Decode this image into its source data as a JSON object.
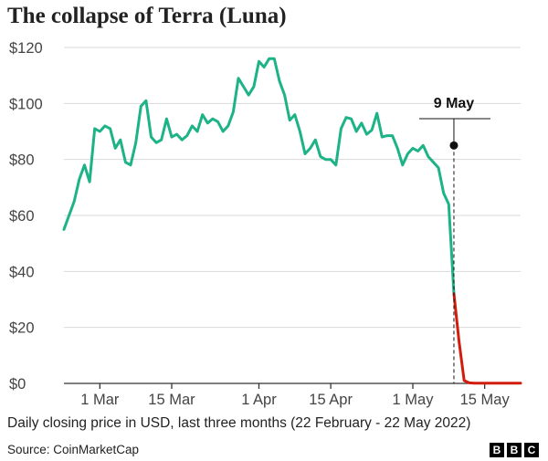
{
  "header": {
    "title": "The collapse of Terra (Luna)"
  },
  "footer": {
    "subtitle": "Daily closing price in USD, last three months (22 February - 22 May 2022)",
    "source": "Source: CoinMarketCap",
    "logo_letters": [
      "B",
      "B",
      "C"
    ]
  },
  "chart_data": {
    "type": "line",
    "title": "The collapse of Terra (Luna)",
    "subtitle": "Daily closing price in USD, last three months (22 February - 22 May 2022)",
    "xlabel": "",
    "ylabel": "",
    "ylim": [
      0,
      120
    ],
    "yticks": [
      0,
      20,
      40,
      60,
      80,
      100,
      120
    ],
    "ytick_labels": [
      "$0",
      "$20",
      "$40",
      "$60",
      "$80",
      "$100",
      "$120"
    ],
    "xticks": [
      "2022-03-01",
      "2022-03-15",
      "2022-04-01",
      "2022-04-15",
      "2022-05-01",
      "2022-05-15"
    ],
    "xtick_labels": [
      "1 Mar",
      "15 Mar",
      "1 Apr",
      "15 Apr",
      "1 May",
      "15 May"
    ],
    "x_range": [
      "2022-02-22",
      "2022-05-22"
    ],
    "grid": "horizontal",
    "annotation": {
      "date": "2022-05-09",
      "label": "9 May",
      "value": 85
    },
    "colors": {
      "before": "#1db387",
      "after": "#d21d0c",
      "grid": "#d9d9d9",
      "axis": "#333333"
    },
    "series": [
      {
        "name": "",
        "x": [
          "2022-02-22",
          "2022-02-23",
          "2022-02-24",
          "2022-02-25",
          "2022-02-26",
          "2022-02-27",
          "2022-02-28",
          "2022-03-01",
          "2022-03-02",
          "2022-03-03",
          "2022-03-04",
          "2022-03-05",
          "2022-03-06",
          "2022-03-07",
          "2022-03-08",
          "2022-03-09",
          "2022-03-10",
          "2022-03-11",
          "2022-03-12",
          "2022-03-13",
          "2022-03-14",
          "2022-03-15",
          "2022-03-16",
          "2022-03-17",
          "2022-03-18",
          "2022-03-19",
          "2022-03-20",
          "2022-03-21",
          "2022-03-22",
          "2022-03-23",
          "2022-03-24",
          "2022-03-25",
          "2022-03-26",
          "2022-03-27",
          "2022-03-28",
          "2022-03-29",
          "2022-03-30",
          "2022-03-31",
          "2022-04-01",
          "2022-04-02",
          "2022-04-03",
          "2022-04-04",
          "2022-04-05",
          "2022-04-06",
          "2022-04-07",
          "2022-04-08",
          "2022-04-09",
          "2022-04-10",
          "2022-04-11",
          "2022-04-12",
          "2022-04-13",
          "2022-04-14",
          "2022-04-15",
          "2022-04-16",
          "2022-04-17",
          "2022-04-18",
          "2022-04-19",
          "2022-04-20",
          "2022-04-21",
          "2022-04-22",
          "2022-04-23",
          "2022-04-24",
          "2022-04-25",
          "2022-04-26",
          "2022-04-27",
          "2022-04-28",
          "2022-04-29",
          "2022-04-30",
          "2022-05-01",
          "2022-05-02",
          "2022-05-03",
          "2022-05-04",
          "2022-05-05",
          "2022-05-06",
          "2022-05-07",
          "2022-05-08",
          "2022-05-09",
          "2022-05-10",
          "2022-05-11",
          "2022-05-12",
          "2022-05-13",
          "2022-05-14",
          "2022-05-15",
          "2022-05-16",
          "2022-05-17",
          "2022-05-18",
          "2022-05-19",
          "2022-05-20",
          "2022-05-21",
          "2022-05-22"
        ],
        "values": [
          55,
          60,
          65,
          73,
          78,
          72,
          91,
          90,
          92,
          91,
          84,
          87,
          79,
          78,
          86,
          99,
          101,
          88,
          86,
          87,
          94.5,
          88,
          89,
          87,
          88.5,
          92,
          90,
          96,
          93,
          94.5,
          93.5,
          90,
          92,
          97,
          109,
          106,
          103,
          106,
          115,
          113,
          116,
          116,
          108,
          103,
          94,
          96,
          90,
          82,
          84,
          87,
          81,
          80,
          80,
          78,
          91,
          95,
          94.5,
          90,
          93,
          89,
          90.5,
          96.5,
          88,
          88.5,
          88.5,
          84,
          78,
          82,
          84,
          83,
          85,
          81,
          79,
          77,
          68,
          64,
          32,
          15,
          1,
          0.2,
          0.1,
          0.1,
          0.1,
          0.1,
          0.1,
          0.1,
          0.1,
          0.1,
          0.1,
          0.1
        ]
      }
    ]
  }
}
